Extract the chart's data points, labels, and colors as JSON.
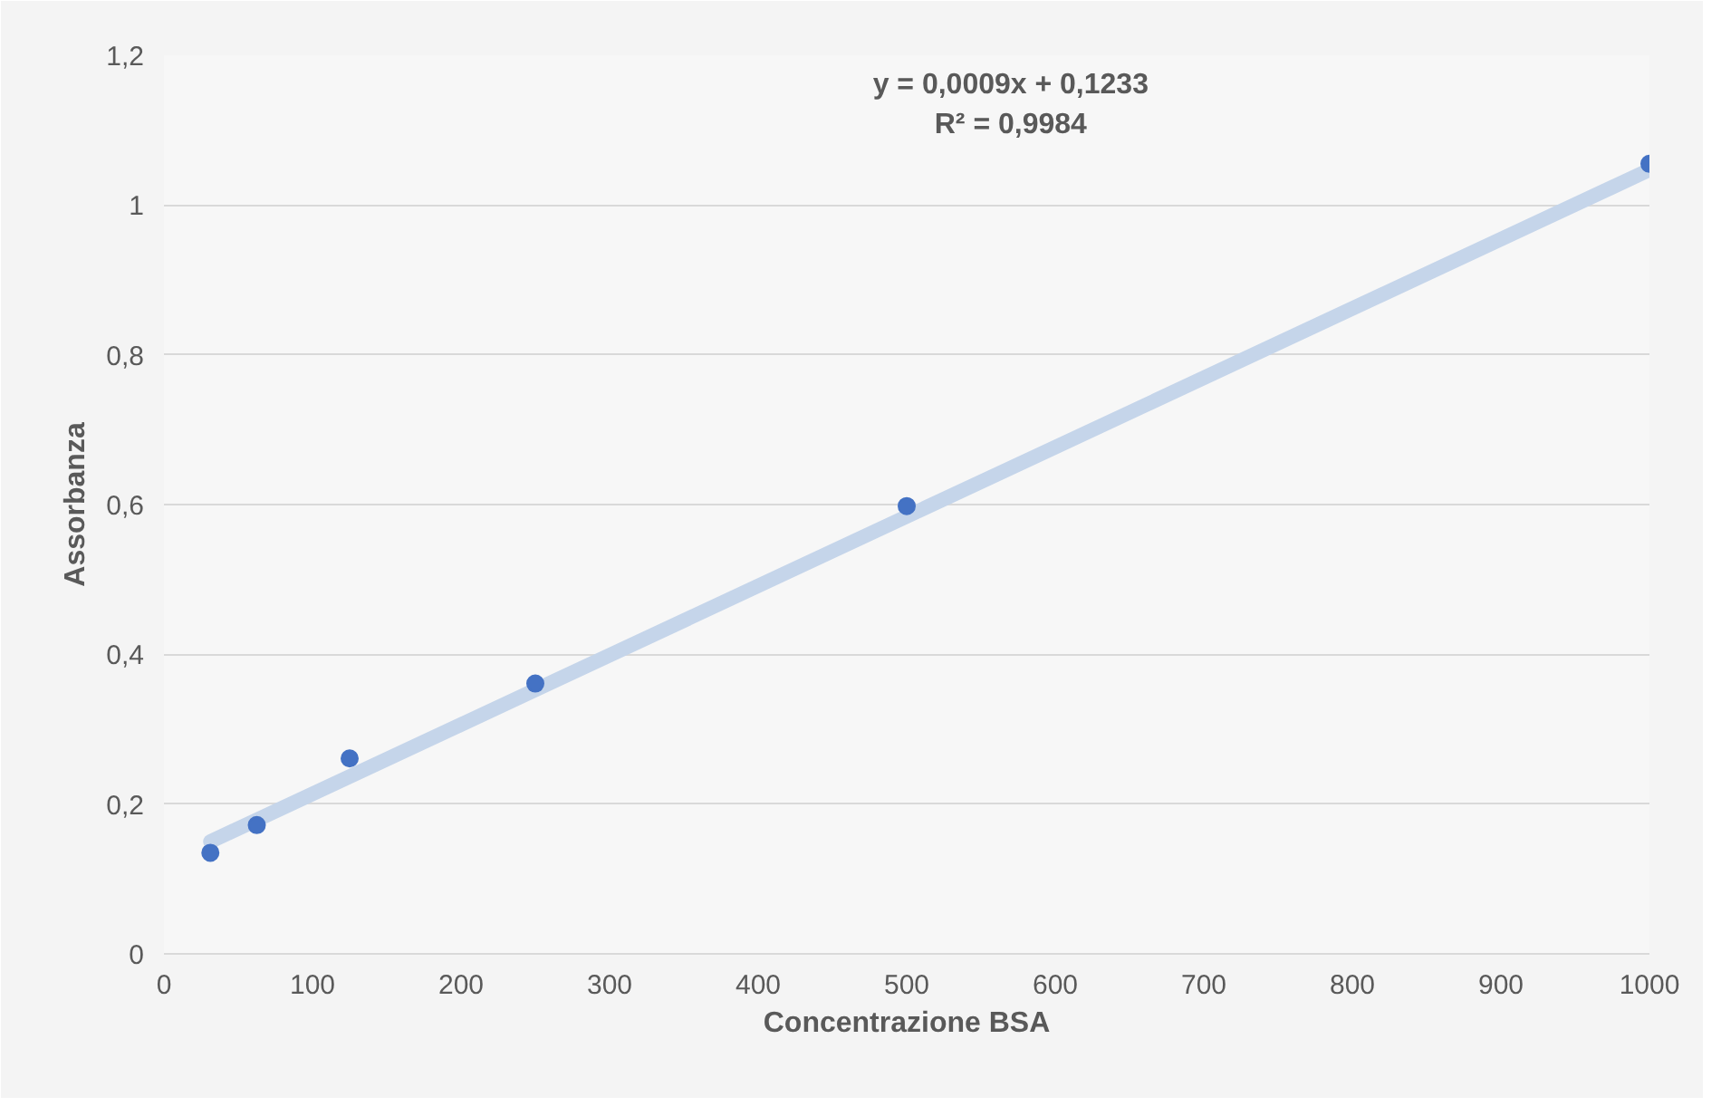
{
  "chart_data": {
    "type": "scatter",
    "xlabel": "Concentrazione BSA",
    "ylabel": "Assorbanza",
    "x": [
      31.25,
      62.5,
      125,
      250,
      500,
      1000
    ],
    "series": [
      {
        "type": "line",
        "color": "#c5d5ea",
        "marker": "none",
        "x": [
          31.25,
          1000
        ],
        "values": [
          0.15,
          1.047
        ]
      },
      {
        "color": "#4472c4",
        "marker": "circle",
        "values": [
          0.135,
          0.172,
          0.261,
          0.361,
          0.598,
          1.055
        ]
      }
    ],
    "xlim": [
      0,
      1000
    ],
    "xticks": [
      0,
      100,
      200,
      300,
      400,
      500,
      600,
      700,
      800,
      900,
      1000
    ],
    "ylim": [
      0,
      1.2
    ],
    "yticks": [
      0,
      {
        "value": 0.2,
        "label": "0,2"
      },
      {
        "value": 0.4,
        "label": "0,4"
      },
      {
        "value": 0.6,
        "label": "0,6"
      },
      {
        "value": 0.8,
        "label": "0,8"
      },
      1,
      {
        "value": 1.2,
        "label": "1,2"
      }
    ],
    "grid": "y",
    "annotations": [
      "y = 0,0009x + 0,1233",
      "R² = 0,9984"
    ]
  }
}
